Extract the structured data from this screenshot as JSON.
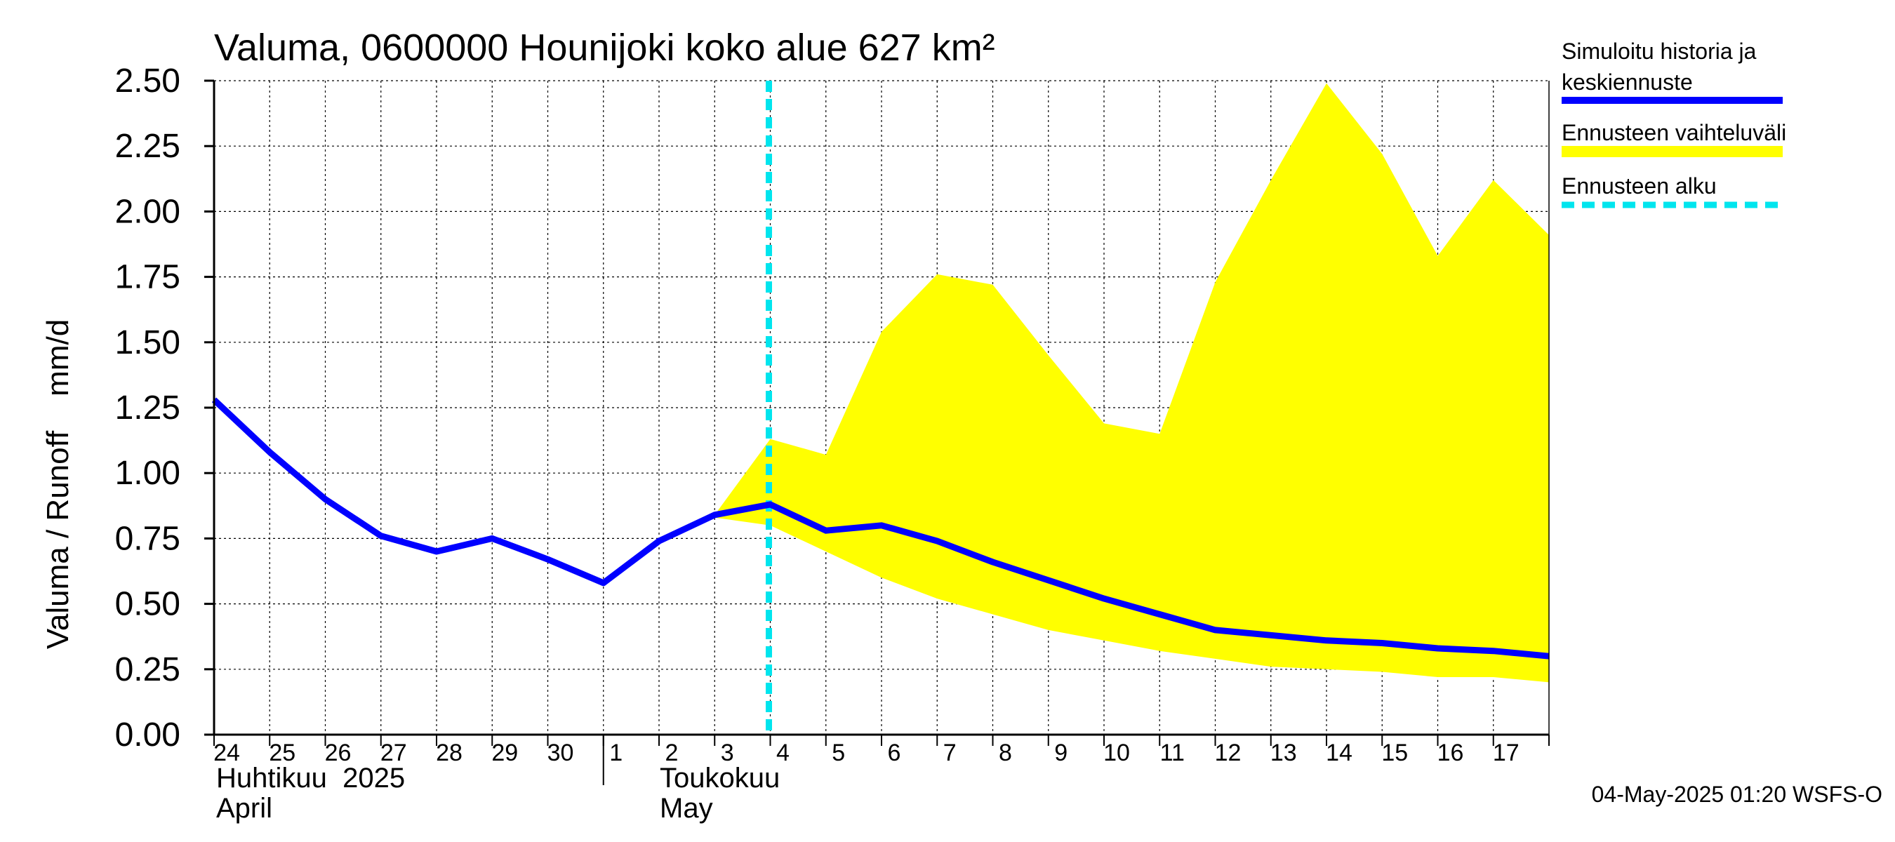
{
  "chart_data": {
    "type": "line",
    "title": "Valuma, 0600000 Hounijoki koko alue 627 km²",
    "ylabel": "Valuma / Runoff    mm/d",
    "ylim": [
      0,
      2.5
    ],
    "yticks": [
      "0.00",
      "0.25",
      "0.50",
      "0.75",
      "1.00",
      "1.25",
      "1.50",
      "1.75",
      "2.00",
      "2.25",
      "2.50"
    ],
    "x_day_labels": [
      "24",
      "25",
      "26",
      "27",
      "28",
      "29",
      "30",
      "1",
      "2",
      "3",
      "4",
      "5",
      "6",
      "7",
      "8",
      "9",
      "10",
      "11",
      "12",
      "13",
      "14",
      "15",
      "16",
      "17"
    ],
    "month_labels": {
      "april_fi": "Huhtikuu  2025",
      "april_en": "April",
      "may_fi": "Toukokuu",
      "may_en": "May"
    },
    "forecast_start_index": 10,
    "series": [
      {
        "name": "Simuloitu historia ja keskiennuste",
        "color": "#0000ff",
        "x": [
          0,
          1,
          2,
          3,
          4,
          5,
          6,
          7,
          8,
          9,
          10,
          11,
          12,
          13,
          14,
          15,
          16,
          17,
          18,
          19,
          20,
          21,
          22,
          23,
          24
        ],
        "values": [
          1.28,
          1.08,
          0.9,
          0.76,
          0.7,
          0.75,
          0.67,
          0.58,
          0.74,
          0.84,
          0.88,
          0.78,
          0.8,
          0.74,
          0.66,
          0.59,
          0.52,
          0.46,
          0.4,
          0.38,
          0.36,
          0.35,
          0.33,
          0.32,
          0.3
        ]
      },
      {
        "name": "Ennusteen vaihteluväli",
        "color": "#ffff00",
        "type": "band",
        "x": [
          9,
          10,
          11,
          12,
          13,
          14,
          15,
          16,
          17,
          18,
          19,
          20,
          21,
          22,
          23,
          24
        ],
        "upper": [
          0.84,
          1.13,
          1.07,
          1.54,
          1.76,
          1.72,
          1.45,
          1.19,
          1.15,
          1.73,
          2.12,
          2.49,
          2.22,
          1.83,
          2.12,
          1.91
        ],
        "lower": [
          0.83,
          0.8,
          0.7,
          0.6,
          0.52,
          0.46,
          0.4,
          0.36,
          0.32,
          0.29,
          0.26,
          0.25,
          0.24,
          0.22,
          0.22,
          0.2
        ]
      }
    ],
    "legend": [
      {
        "label_line1": "Simuloitu historia ja",
        "label_line2": "keskiennuste",
        "color": "#0000ff",
        "style": "solid"
      },
      {
        "label_line1": "Ennusteen vaihteluväli",
        "color": "#ffff00",
        "style": "solid"
      },
      {
        "label_line1": "Ennusteen alku",
        "color": "#00e5ee",
        "style": "dashed"
      }
    ]
  },
  "footer": "04-May-2025 01:20 WSFS-O"
}
